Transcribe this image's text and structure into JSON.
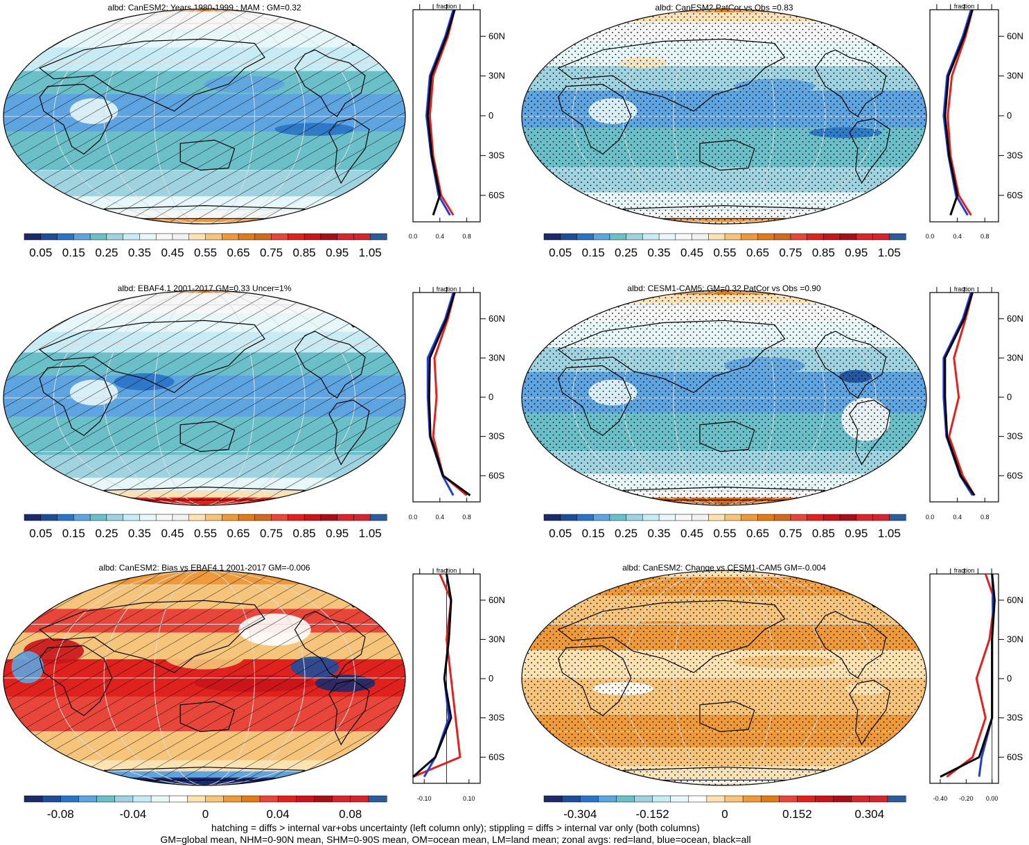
{
  "panels": [
    {
      "title": "albd: CanESM2: Years 1980-1999 : MAM : GM=0.32",
      "scale": "abs",
      "overlay": "hatch"
    },
    {
      "title": "albd: CanESM2 PatCor vs Obs =0.83",
      "scale": "abs",
      "overlay": "stipple"
    },
    {
      "title": "albd: EBAF4.1 2001-2017 GM=0.33 Uncer=1%",
      "scale": "abs",
      "overlay": "hatch"
    },
    {
      "title": "albd: CESM1-CAM5: GM=0.32 PatCor vs Obs =0.90",
      "scale": "abs",
      "overlay": "stipple"
    },
    {
      "title": "albd: CanESM2: Bias vs EBAF4.1 2001-2017 GM=-0.006",
      "scale": "bias",
      "overlay": "hatch"
    },
    {
      "title": "albd: CanESM2: Change vs CESM1-CAM5 GM=-0.004",
      "scale": "change",
      "overlay": "stipple"
    }
  ],
  "colorbars": {
    "abs": {
      "colors": [
        "#1c2a6b",
        "#1f4e99",
        "#2a73c6",
        "#5ea4e0",
        "#6bbfc9",
        "#9fd3e0",
        "#c8ecf5",
        "#e7f7fa",
        "#f7f7f7",
        "#f2f2f2",
        "#fde3b2",
        "#f6c47a",
        "#ee9a3a",
        "#e07b1a",
        "#d06a20",
        "#e8463a",
        "#e0221e",
        "#c8141a",
        "#a81018",
        "#d8242a",
        "#d42430",
        "#2b5d9a"
      ],
      "labels": [
        "0.05",
        "0.15",
        "0.25",
        "0.35",
        "0.45",
        "0.55",
        "0.65",
        "0.75",
        "0.85",
        "0.95",
        "1.05"
      ]
    },
    "bias": {
      "colors": [
        "#1c2a6b",
        "#1f4e99",
        "#2a73c6",
        "#5ea4e0",
        "#6bbfc9",
        "#9fd3e0",
        "#c8ecf5",
        "#e7f7fa",
        "#ffffff",
        "#fde3b2",
        "#f6c47a",
        "#ee9a3a",
        "#e07b1a",
        "#e8463a",
        "#e0221e",
        "#c8141a",
        "#a81018",
        "#d8242a",
        "#d42430",
        "#2b5d9a"
      ],
      "labels": [
        "-0.08",
        "-0.04",
        "0",
        "0.04",
        "0.08"
      ]
    },
    "change": {
      "colors": [
        "#1c2a6b",
        "#1f4e99",
        "#2a73c6",
        "#5ea4e0",
        "#6bbfc9",
        "#9fd3e0",
        "#c8ecf5",
        "#e7f7fa",
        "#ffffff",
        "#fde3b2",
        "#f6c47a",
        "#ee9a3a",
        "#e07b1a",
        "#e8463a",
        "#e0221e",
        "#c8141a",
        "#a81018",
        "#d8242a",
        "#d42430",
        "#2b5d9a"
      ],
      "labels": [
        "-0.304",
        "-0.152",
        "0",
        "0.152",
        "0.304"
      ]
    }
  },
  "zonal_axes": {
    "title": "fraction",
    "lat_ticks": [
      "60N",
      "30N",
      "0",
      "30S",
      "60S"
    ],
    "x_ticks_abs": [
      "0.0",
      "0.4",
      "0.8"
    ],
    "x_ticks_bias": [
      "-0.10",
      "0.10"
    ],
    "x_ticks_change": [
      "-0.40",
      "-0.20",
      "0.00"
    ]
  },
  "chart_data": {
    "type": "heatmap",
    "title": "",
    "subplots": [
      {
        "title": "albd: CanESM2: Years 1980-1999 : MAM : GM=0.32",
        "global_mean": 0.32,
        "zonal_avg_lat": [
          80,
          60,
          30,
          0,
          -30,
          -60,
          -75
        ],
        "zonal_avg_all": [
          0.62,
          0.5,
          0.27,
          0.22,
          0.28,
          0.4,
          0.3
        ],
        "zonal_avg_land": [
          0.62,
          0.52,
          0.3,
          0.25,
          0.3,
          0.42,
          0.6
        ],
        "zonal_avg_ocean": [
          0.6,
          0.48,
          0.25,
          0.2,
          0.27,
          0.38,
          0.55
        ],
        "xlim": [
          0,
          1
        ]
      },
      {
        "title": "albd: CanESM2 PatCor vs Obs =0.83",
        "pattern_correlation": 0.83,
        "zonal_avg_lat": [
          80,
          60,
          30,
          0,
          -30,
          -60,
          -75
        ],
        "zonal_avg_all": [
          0.62,
          0.5,
          0.27,
          0.22,
          0.28,
          0.4,
          0.3
        ],
        "zonal_avg_land": [
          0.62,
          0.52,
          0.32,
          0.26,
          0.3,
          0.42,
          0.6
        ],
        "zonal_avg_ocean": [
          0.6,
          0.48,
          0.25,
          0.2,
          0.27,
          0.38,
          0.55
        ],
        "xlim": [
          0,
          1
        ]
      },
      {
        "title": "albd: EBAF4.1 2001-2017 GM=0.33 Uncer=1%",
        "global_mean": 0.33,
        "uncertainty_percent": 1,
        "zonal_avg_lat": [
          80,
          60,
          30,
          0,
          -30,
          -60,
          -75
        ],
        "zonal_avg_all": [
          0.62,
          0.5,
          0.25,
          0.24,
          0.26,
          0.45,
          0.85
        ],
        "zonal_avg_land": [
          0.62,
          0.52,
          0.32,
          0.35,
          0.3,
          0.45,
          0.8
        ],
        "zonal_avg_ocean": [
          0.6,
          0.48,
          0.22,
          0.22,
          0.25,
          0.44,
          0.6
        ],
        "xlim": [
          0,
          1
        ]
      },
      {
        "title": "albd: CESM1-CAM5: GM=0.32 PatCor vs Obs =0.90",
        "global_mean": 0.32,
        "pattern_correlation": 0.9,
        "zonal_avg_lat": [
          80,
          60,
          30,
          0,
          -30,
          -60,
          -75
        ],
        "zonal_avg_all": [
          0.62,
          0.5,
          0.22,
          0.22,
          0.25,
          0.45,
          0.65
        ],
        "zonal_avg_land": [
          0.62,
          0.52,
          0.35,
          0.42,
          0.28,
          0.48,
          0.65
        ],
        "zonal_avg_ocean": [
          0.6,
          0.48,
          0.2,
          0.2,
          0.24,
          0.44,
          0.62
        ],
        "xlim": [
          0,
          1
        ]
      },
      {
        "title": "albd: CanESM2: Bias vs EBAF4.1 2001-2017 GM=-0.006",
        "global_mean": -0.006,
        "zonal_avg_lat": [
          80,
          60,
          30,
          0,
          -30,
          -60,
          -75
        ],
        "zonal_avg_all": [
          0.0,
          0.02,
          0.01,
          -0.01,
          0.02,
          -0.05,
          -0.15
        ],
        "zonal_avg_land": [
          -0.03,
          0.02,
          0.0,
          0.02,
          0.04,
          0.06,
          -0.15
        ],
        "zonal_avg_ocean": [
          0.0,
          0.02,
          0.01,
          -0.01,
          0.01,
          -0.05,
          -0.1
        ],
        "xlim": [
          -0.15,
          0.15
        ]
      },
      {
        "title": "albd: CanESM2: Change vs CESM1-CAM5 GM=-0.004",
        "global_mean": -0.004,
        "zonal_avg_lat": [
          80,
          60,
          30,
          0,
          -30,
          -60,
          -75
        ],
        "zonal_avg_all": [
          0.0,
          0.02,
          0.0,
          0.0,
          0.0,
          -0.1,
          -0.4
        ],
        "zonal_avg_land": [
          -0.05,
          0.02,
          -0.02,
          -0.12,
          -0.05,
          -0.15,
          -0.35
        ],
        "zonal_avg_ocean": [
          0.0,
          0.01,
          0.0,
          0.0,
          0.0,
          -0.08,
          -0.1
        ],
        "xlim": [
          -0.48,
          0.05
        ]
      }
    ],
    "legend": [
      "red=land",
      "blue=ocean",
      "black=all"
    ]
  },
  "footnotes": {
    "line1": "hatching = diffs > internal var+obs uncertainty (left column only); stippling = diffs > internal var only (both columns)",
    "line2": "GM=global mean, NHM=0-90N mean, SHM=0-90S mean, OM=ocean mean, LM=land mean; zonal avgs: red=land, blue=ocean, black=all"
  }
}
